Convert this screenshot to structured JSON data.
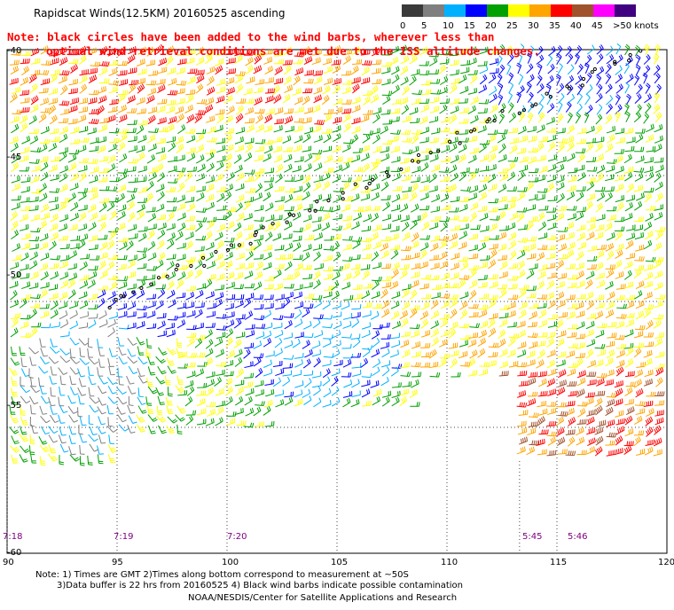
{
  "title": "Rapidscat Winds(12.5KM) 20160525 ascending",
  "note": {
    "line1": "Note: black circles have been added to the wind barbs, wherever less than",
    "line2": "optimal wind retrieval conditions are met due to the ISS altitude changes."
  },
  "scale": {
    "labels": [
      "0",
      "5",
      "10",
      "15",
      "20",
      "25",
      "30",
      "35",
      "40",
      "45",
      ">50 knots"
    ],
    "colors": [
      "#3a3a3a",
      "#7f7f7f",
      "#00b0ff",
      "#0000ff",
      "#00a000",
      "#ffff00",
      "#ffa500",
      "#ff0000",
      "#a0522d",
      "#ff00ff",
      "#400080"
    ]
  },
  "map": {
    "lon_range": [
      90,
      120
    ],
    "lat_range": [
      -40,
      -60
    ],
    "lat_labels": [
      "-40",
      "-45",
      "-50",
      "-55",
      "-60"
    ],
    "lon_labels": [
      "90",
      "95",
      "100",
      "105",
      "110",
      "115",
      "120"
    ],
    "time_labels": [
      "7:18",
      "7:19",
      "7:20",
      "5:45",
      "5:46"
    ],
    "time_lons": [
      90,
      95,
      100,
      113.3,
      115
    ]
  },
  "footer": {
    "line1": "Note: 1) Times are GMT 2)Times along bottom correspond to measurement at ~50S",
    "line2": "3)Data buffer is 22 hrs from 20160525 4) Black wind barbs indicate possible contamination",
    "line3": "NOAA/NESDIS/Center for Satellite Applications and Research"
  }
}
